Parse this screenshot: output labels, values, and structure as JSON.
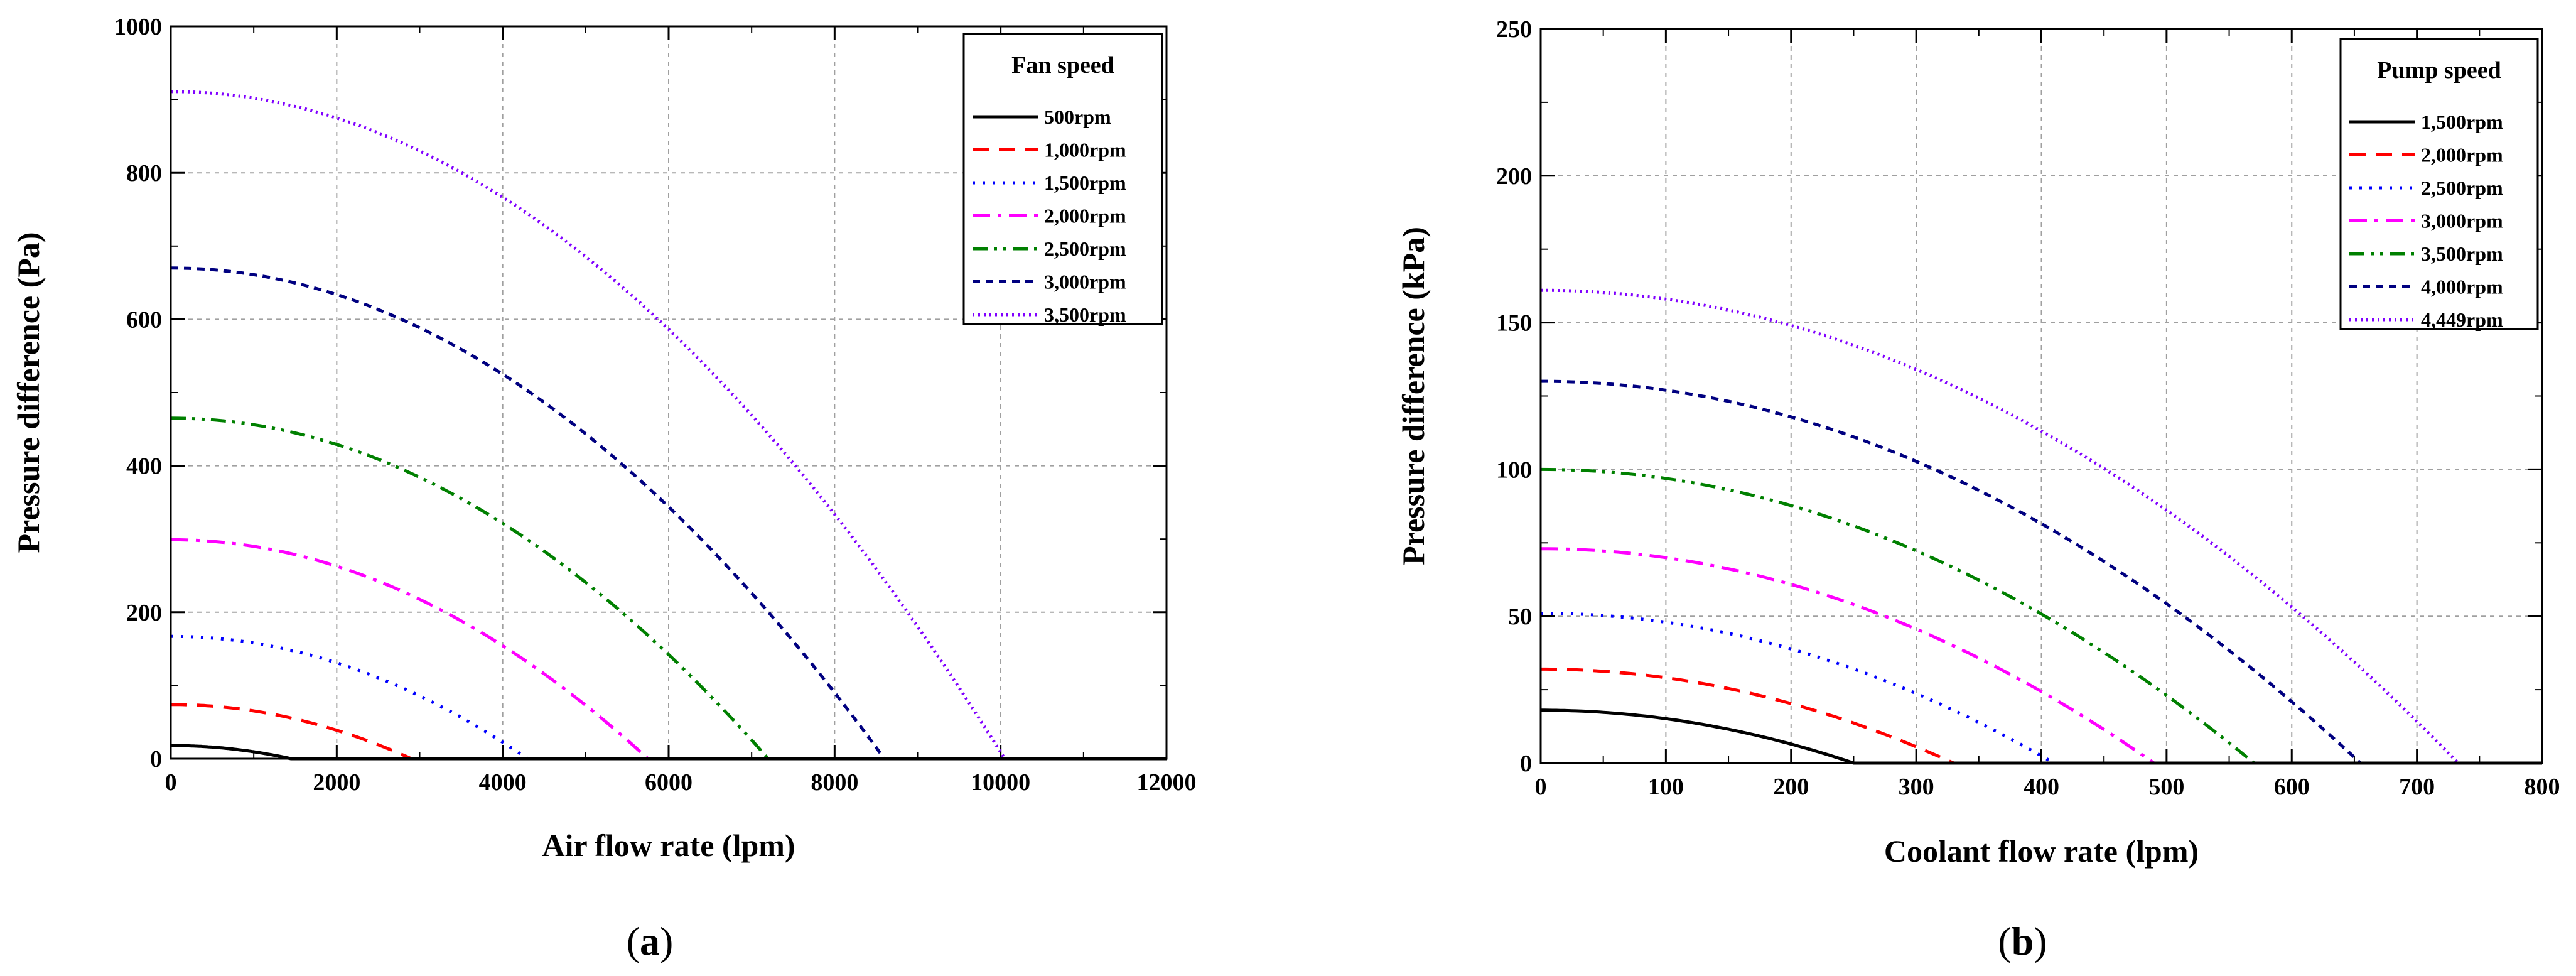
{
  "chart_data": [
    {
      "type": "line",
      "panel_label": "a",
      "title": "",
      "xlabel": "Air flow rate (lpm)",
      "ylabel": "Pressure difference (Pa)",
      "xlim": [
        0,
        12000
      ],
      "ylim": [
        0,
        1000
      ],
      "xticks": [
        0,
        2000,
        4000,
        6000,
        8000,
        10000,
        12000
      ],
      "yticks": [
        0,
        200,
        400,
        600,
        800,
        1000
      ],
      "xtick_labels": [
        "0",
        "2000",
        "4000",
        "6000",
        "8000",
        "10000",
        "12000"
      ],
      "ytick_labels": [
        "0",
        "200",
        "400",
        "600",
        "800",
        "1000"
      ],
      "grid": true,
      "legend_title": "Fan speed",
      "legend_position": "top-right",
      "series": [
        {
          "name": "500rpm",
          "style": "solid",
          "color": "#000000",
          "p0": 18,
          "x_zero": 1450
        },
        {
          "name": "1,000rpm",
          "style": "dashed",
          "color": "#ff0000",
          "p0": 74,
          "x_zero": 2900
        },
        {
          "name": "1,500rpm",
          "style": "dotted",
          "color": "#0000ff",
          "p0": 167,
          "x_zero": 4300
        },
        {
          "name": "2,000rpm",
          "style": "dashdot",
          "color": "#ff00ff",
          "p0": 299,
          "x_zero": 5750
        },
        {
          "name": "2,500rpm",
          "style": "dashdotdot",
          "color": "#008000",
          "p0": 465,
          "x_zero": 7200
        },
        {
          "name": "3,000rpm",
          "style": "short-dash",
          "color": "#000080",
          "p0": 670,
          "x_zero": 8600
        },
        {
          "name": "3,500rpm",
          "style": "short-dot",
          "color": "#8000ff",
          "p0": 911,
          "x_zero": 10050
        }
      ]
    },
    {
      "type": "line",
      "panel_label": "b",
      "title": "",
      "xlabel": "Coolant flow rate (lpm)",
      "ylabel": "Pressure difference (kPa)",
      "xlim": [
        0,
        800
      ],
      "ylim": [
        0,
        250
      ],
      "xticks": [
        0,
        100,
        200,
        300,
        400,
        500,
        600,
        700,
        800
      ],
      "yticks": [
        0,
        50,
        100,
        150,
        200,
        250
      ],
      "xtick_labels": [
        "0",
        "100",
        "200",
        "300",
        "400",
        "500",
        "600",
        "700",
        "800"
      ],
      "ytick_labels": [
        "0",
        "50",
        "100",
        "150",
        "200",
        "250"
      ],
      "grid": true,
      "legend_title": "Pump speed",
      "legend_position": "top-right",
      "series": [
        {
          "name": "1,500rpm",
          "style": "solid",
          "color": "#000000",
          "p0": 18,
          "x_zero": 250
        },
        {
          "name": "2,000rpm",
          "style": "dashed",
          "color": "#ff0000",
          "p0": 32,
          "x_zero": 330
        },
        {
          "name": "2,500rpm",
          "style": "dotted",
          "color": "#0000ff",
          "p0": 51,
          "x_zero": 410
        },
        {
          "name": "3,000rpm",
          "style": "dashdot",
          "color": "#ff00ff",
          "p0": 73,
          "x_zero": 490
        },
        {
          "name": "3,500rpm",
          "style": "dashdotdot",
          "color": "#008000",
          "p0": 100,
          "x_zero": 570
        },
        {
          "name": "4,000rpm",
          "style": "short-dash",
          "color": "#000080",
          "p0": 130,
          "x_zero": 655
        },
        {
          "name": "4,449rpm",
          "style": "short-dot",
          "color": "#8000ff",
          "p0": 161,
          "x_zero": 733
        }
      ]
    }
  ]
}
